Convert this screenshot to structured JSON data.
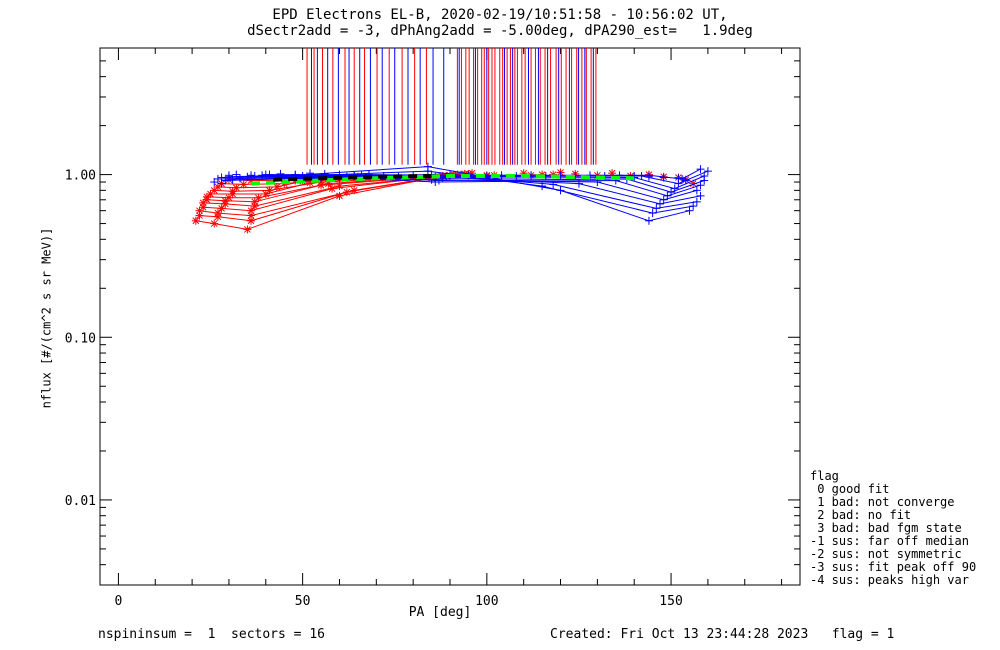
{
  "chart_data": {
    "type": "scatter",
    "title": "EPD Electrons EL-B, 2020-02-19/10:51:58 - 10:56:02 UT,",
    "subtitle": "dSectr2add = -3, dPhAng2add = -5.00deg, dPA290_est=   1.9deg",
    "xlabel": "PA [deg]",
    "ylabel": "nflux [#/(cm^2 s sr MeV)]",
    "xlim": [
      -5,
      185
    ],
    "ylim": [
      0.003,
      6.0
    ],
    "yscale": "log",
    "xticks": [
      0,
      50,
      100,
      150
    ],
    "xtick_labels": [
      "0",
      "50",
      "100",
      "150"
    ],
    "yticks": [
      0.01,
      0.1,
      1.0
    ],
    "ytick_labels": [
      "0.01",
      "0.10",
      "1.00"
    ],
    "colors": {
      "red": "#ff0000",
      "blue": "#0000ff",
      "green": "#00ff00",
      "black": "#000000"
    },
    "series": [
      {
        "color": "#ff0000",
        "marker": "plus-star",
        "curves": [
          [
            [
              21,
              0.52
            ],
            [
              26,
              0.5
            ],
            [
              35,
              0.46
            ],
            [
              60,
              0.74
            ],
            [
              85,
              0.95
            ],
            [
              100,
              0.98
            ],
            [
              115,
              1.0
            ]
          ],
          [
            [
              22,
              0.56
            ],
            [
              27,
              0.55
            ],
            [
              36,
              0.52
            ],
            [
              62,
              0.78
            ],
            [
              86,
              0.96
            ],
            [
              100,
              0.99
            ]
          ],
          [
            [
              22,
              0.6
            ],
            [
              27,
              0.58
            ],
            [
              36,
              0.56
            ],
            [
              64,
              0.8
            ],
            [
              87,
              0.97
            ],
            [
              102,
              0.99
            ]
          ],
          [
            [
              23,
              0.63
            ],
            [
              28,
              0.62
            ],
            [
              36,
              0.6
            ],
            [
              58,
              0.82
            ],
            [
              88,
              0.98
            ]
          ],
          [
            [
              23,
              0.67
            ],
            [
              29,
              0.66
            ],
            [
              37,
              0.64
            ],
            [
              60,
              0.85
            ],
            [
              89,
              0.98
            ]
          ],
          [
            [
              24,
              0.7
            ],
            [
              29,
              0.69
            ],
            [
              37,
              0.68
            ],
            [
              55,
              0.86
            ],
            [
              90,
              0.99
            ]
          ],
          [
            [
              24,
              0.73
            ],
            [
              30,
              0.72
            ],
            [
              38,
              0.72
            ],
            [
              57,
              0.88
            ],
            [
              91,
              1.0
            ]
          ],
          [
            [
              25,
              0.76
            ],
            [
              31,
              0.76
            ],
            [
              40,
              0.76
            ],
            [
              52,
              0.89
            ],
            [
              92,
              1.0
            ]
          ],
          [
            [
              26,
              0.8
            ],
            [
              31,
              0.79
            ],
            [
              41,
              0.8
            ],
            [
              55,
              0.9
            ],
            [
              93,
              1.0
            ]
          ],
          [
            [
              27,
              0.84
            ],
            [
              32,
              0.83
            ],
            [
              43,
              0.84
            ],
            [
              50,
              0.91
            ],
            [
              94,
              1.01
            ]
          ],
          [
            [
              28,
              0.88
            ],
            [
              34,
              0.87
            ],
            [
              45,
              0.88
            ],
            [
              60,
              0.94
            ],
            [
              95,
              1.01
            ]
          ],
          [
            [
              30,
              0.93
            ],
            [
              36,
              0.92
            ],
            [
              48,
              0.92
            ],
            [
              65,
              0.97
            ],
            [
              96,
              1.02
            ]
          ]
        ],
        "points": [
          [
            110,
            1.02
          ],
          [
            112,
            0.99
          ],
          [
            118,
            1.0
          ],
          [
            120,
            1.03
          ],
          [
            124,
            1.01
          ],
          [
            130,
            0.99
          ],
          [
            134,
            1.02
          ],
          [
            139,
            0.98
          ],
          [
            144,
            1.0
          ],
          [
            148,
            0.97
          ],
          [
            152,
            0.96
          ],
          [
            154,
            0.93
          ],
          [
            156,
            0.88
          ]
        ]
      },
      {
        "color": "#0000ff",
        "marker": "plus",
        "curves": [
          [
            [
              30,
              0.97
            ],
            [
              48,
              0.99
            ],
            [
              84,
              1.12
            ],
            [
              120,
              0.8
            ],
            [
              144,
              0.52
            ],
            [
              155,
              0.6
            ]
          ],
          [
            [
              28,
              0.96
            ],
            [
              50,
              0.98
            ],
            [
              84,
              1.05
            ],
            [
              115,
              0.85
            ],
            [
              145,
              0.58
            ],
            [
              156,
              0.64
            ]
          ],
          [
            [
              27,
              0.94
            ],
            [
              52,
              0.97
            ],
            [
              85,
              1.0
            ],
            [
              118,
              0.87
            ],
            [
              146,
              0.62
            ],
            [
              157,
              0.68
            ]
          ],
          [
            [
              29,
              0.92
            ],
            [
              55,
              0.96
            ],
            [
              86,
              0.97
            ],
            [
              125,
              0.88
            ],
            [
              147,
              0.66
            ],
            [
              158,
              0.74
            ]
          ],
          [
            [
              31,
              0.93
            ],
            [
              58,
              0.95
            ],
            [
              85,
              0.93
            ],
            [
              130,
              0.9
            ],
            [
              148,
              0.7
            ],
            [
              157,
              0.8
            ]
          ],
          [
            [
              33,
              0.95
            ],
            [
              60,
              0.96
            ],
            [
              86,
              0.9
            ],
            [
              135,
              0.92
            ],
            [
              149,
              0.74
            ],
            [
              158,
              0.86
            ]
          ],
          [
            [
              35,
              0.97
            ],
            [
              62,
              0.97
            ],
            [
              87,
              0.92
            ],
            [
              138,
              0.94
            ],
            [
              150,
              0.78
            ],
            [
              159,
              0.92
            ]
          ],
          [
            [
              37,
              0.98
            ],
            [
              64,
              0.98
            ],
            [
              88,
              0.95
            ],
            [
              140,
              0.96
            ],
            [
              151,
              0.82
            ],
            [
              159,
              0.98
            ]
          ],
          [
            [
              39,
              0.99
            ],
            [
              66,
              0.99
            ],
            [
              89,
              0.97
            ],
            [
              142,
              0.98
            ],
            [
              152,
              0.88
            ],
            [
              160,
              1.05
            ]
          ],
          [
            [
              41,
              1.0
            ],
            [
              68,
              1.0
            ],
            [
              90,
              0.99
            ],
            [
              144,
              0.99
            ],
            [
              153,
              0.94
            ],
            [
              158,
              1.08
            ]
          ]
        ],
        "points": [
          [
            26,
            0.9
          ],
          [
            28,
            0.88
          ],
          [
            30,
            0.99
          ],
          [
            32,
            1.0
          ],
          [
            36,
            0.99
          ],
          [
            40,
            1.0
          ],
          [
            44,
            1.01
          ],
          [
            48,
            1.0
          ],
          [
            52,
            1.02
          ],
          [
            56,
            1.01
          ],
          [
            60,
            1.0
          ],
          [
            64,
            0.99
          ],
          [
            68,
            1.0
          ],
          [
            72,
            0.98
          ],
          [
            76,
            0.97
          ],
          [
            80,
            0.98
          ],
          [
            95,
            0.99
          ],
          [
            100,
            0.98
          ],
          [
            104,
            0.99
          ],
          [
            108,
            0.98
          ],
          [
            112,
            0.99
          ],
          [
            116,
            0.98
          ],
          [
            120,
            0.99
          ],
          [
            124,
            0.98
          ],
          [
            128,
            0.99
          ],
          [
            132,
            0.98
          ],
          [
            136,
            0.99
          ],
          [
            140,
            0.98
          ],
          [
            144,
            0.97
          ],
          [
            148,
            0.96
          ],
          [
            152,
            0.95
          ],
          [
            154,
            0.92
          ]
        ]
      }
    ],
    "fit_curves": [
      {
        "color": "#00ff00",
        "style": "dashed",
        "points": [
          [
            36,
            0.88
          ],
          [
            50,
            0.91
          ],
          [
            70,
            0.95
          ],
          [
            90,
            0.98
          ],
          [
            110,
            0.98
          ],
          [
            130,
            0.96
          ],
          [
            140,
            0.95
          ]
        ]
      },
      {
        "color": "#000000",
        "style": "dashed",
        "points": [
          [
            42,
            0.93
          ],
          [
            55,
            0.95
          ],
          [
            70,
            0.97
          ],
          [
            85,
            0.98
          ]
        ]
      }
    ],
    "vertical_lines": {
      "ymin": 1.15,
      "ymax": 6.0,
      "red_x": [
        51.2,
        53.1,
        55.4,
        58.2,
        61.5,
        64.0,
        66.8,
        70.2,
        73.5,
        77.0,
        80.4,
        83.6,
        92.0,
        93.1,
        94.3,
        95.2,
        96.4,
        97.5,
        98.6,
        99.3,
        100.5,
        101.4,
        102.2,
        103.5,
        104.3,
        105.5,
        106.4,
        107.6,
        108.3,
        109.5,
        110.4,
        112.0,
        113.2,
        114.5,
        115.8,
        117.3,
        118.8,
        120.2,
        121.5,
        123.0,
        124.4,
        125.8,
        127.0,
        128.3,
        129.6
      ],
      "blue_x": [
        52.4,
        54.0,
        56.8,
        59.7,
        62.6,
        65.5,
        68.4,
        71.6,
        75.0,
        78.6,
        81.9,
        85.4,
        88.3,
        92.5,
        96.9,
        100.0,
        104.8,
        107.0,
        111.3,
        114.0,
        116.5,
        119.5,
        122.4,
        124.9,
        126.6,
        128.9
      ]
    }
  },
  "footer": {
    "left": "nspininsum =  1  sectors = 16",
    "right": "Created: Fri Oct 13 23:44:28 2023   flag = 1"
  },
  "legend": {
    "title": "flag",
    "items": [
      " 0 good fit",
      " 1 bad: not converge",
      " 2 bad: no fit",
      " 3 bad: bad fgm state",
      "-1 sus: far off median",
      "-2 sus: not symmetric",
      "-3 sus: fit peak off 90",
      "-4 sus: peaks high var"
    ]
  }
}
